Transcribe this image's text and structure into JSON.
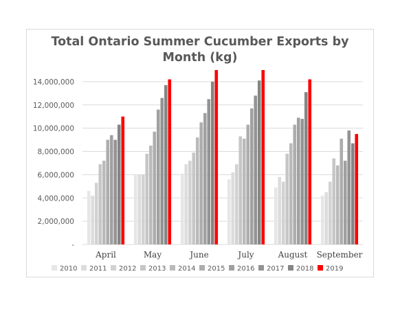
{
  "chart_data": {
    "type": "bar",
    "title_lines": [
      "Total Ontario Summer Cucumber Exports by",
      "Month (kg)"
    ],
    "categories": [
      "April",
      "May",
      "June",
      "July",
      "August",
      "September"
    ],
    "ylim": [
      0,
      15000000
    ],
    "yticks": [
      0,
      2000000,
      4000000,
      6000000,
      8000000,
      10000000,
      12000000,
      14000000
    ],
    "ytick_labels": [
      "-",
      "2,000,000",
      "4,000,000",
      "6,000,000",
      "8,000,000",
      "10,000,000",
      "12,000,000",
      "14,000,000"
    ],
    "grid": true,
    "legend_position": "bottom",
    "series": [
      {
        "name": "2010",
        "color": "#e6e6e6",
        "values": [
          4600000,
          6000000,
          6100000,
          5600000,
          4900000,
          4200000
        ]
      },
      {
        "name": "2011",
        "color": "#dcdcdc",
        "values": [
          4200000,
          6000000,
          6900000,
          6200000,
          5800000,
          4500000
        ]
      },
      {
        "name": "2012",
        "color": "#d2d2d2",
        "values": [
          5300000,
          6000000,
          7200000,
          6900000,
          5400000,
          5400000
        ]
      },
      {
        "name": "2013",
        "color": "#c6c6c6",
        "values": [
          6900000,
          7800000,
          7900000,
          9300000,
          7800000,
          7400000
        ]
      },
      {
        "name": "2014",
        "color": "#bababa",
        "values": [
          7200000,
          8500000,
          9200000,
          9100000,
          8700000,
          6800000
        ]
      },
      {
        "name": "2015",
        "color": "#adadad",
        "values": [
          9000000,
          9700000,
          10500000,
          10300000,
          10300000,
          9100000
        ]
      },
      {
        "name": "2016",
        "color": "#a0a0a0",
        "values": [
          9400000,
          11600000,
          11300000,
          11700000,
          10900000,
          7200000
        ]
      },
      {
        "name": "2017",
        "color": "#939393",
        "values": [
          9000000,
          12600000,
          12500000,
          12800000,
          10800000,
          9800000
        ]
      },
      {
        "name": "2018",
        "color": "#858585",
        "values": [
          10300000,
          13700000,
          14000000,
          14100000,
          13100000,
          8700000
        ]
      },
      {
        "name": "2019",
        "color": "#ff0000",
        "values": [
          11000000,
          14200000,
          15000000,
          15000000,
          14200000,
          9500000
        ]
      }
    ]
  }
}
